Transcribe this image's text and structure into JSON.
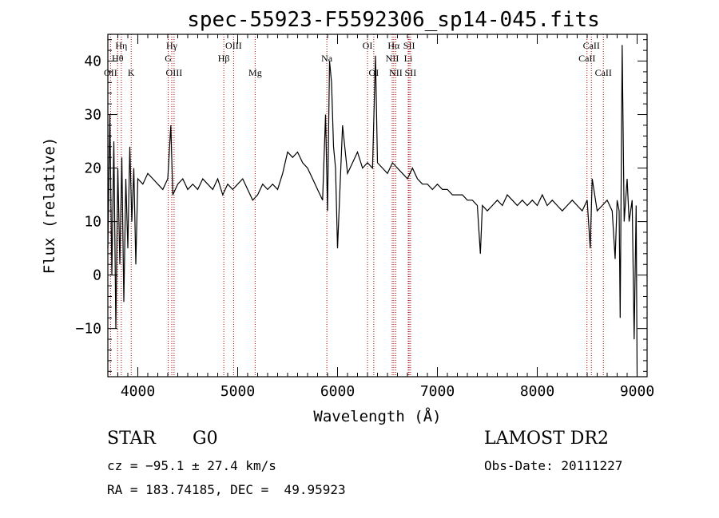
{
  "chart_data": {
    "type": "line",
    "title": "spec-55923-F5592306_sp14-045.fits",
    "xlabel": "Wavelength (Å)",
    "ylabel": "Flux (relative)",
    "xlim": [
      3700,
      9100
    ],
    "ylim": [
      -19,
      45
    ],
    "x_ticks": [
      4000,
      5000,
      6000,
      7000,
      8000,
      9000
    ],
    "y_ticks": [
      -10,
      0,
      10,
      20,
      30,
      40
    ],
    "grid": false,
    "series": [
      {
        "color": "#000000",
        "x": [
          3700,
          3720,
          3740,
          3760,
          3780,
          3800,
          3820,
          3840,
          3860,
          3880,
          3900,
          3920,
          3940,
          3960,
          3980,
          4000,
          4050,
          4100,
          4150,
          4200,
          4250,
          4300,
          4330,
          4350,
          4400,
          4450,
          4500,
          4550,
          4600,
          4650,
          4700,
          4750,
          4800,
          4850,
          4900,
          4950,
          5000,
          5050,
          5100,
          5150,
          5200,
          5250,
          5300,
          5350,
          5400,
          5450,
          5500,
          5550,
          5600,
          5650,
          5700,
          5750,
          5800,
          5850,
          5880,
          5900,
          5920,
          5940,
          5960,
          5980,
          6000,
          6050,
          6100,
          6150,
          6200,
          6250,
          6300,
          6350,
          6380,
          6400,
          6450,
          6500,
          6550,
          6600,
          6650,
          6700,
          6750,
          6800,
          6850,
          6900,
          6950,
          7000,
          7050,
          7100,
          7150,
          7200,
          7250,
          7300,
          7350,
          7400,
          7430,
          7450,
          7500,
          7550,
          7600,
          7650,
          7700,
          7750,
          7800,
          7850,
          7900,
          7950,
          8000,
          8050,
          8100,
          8150,
          8200,
          8250,
          8300,
          8350,
          8400,
          8450,
          8500,
          8530,
          8550,
          8600,
          8650,
          8700,
          8750,
          8780,
          8800,
          8820,
          8830,
          8850,
          8870,
          8900,
          8920,
          8950,
          8970,
          8990,
          9000
        ],
        "y": [
          5,
          30,
          0,
          25,
          -10,
          20,
          2,
          22,
          -5,
          18,
          5,
          24,
          10,
          20,
          2,
          18,
          17,
          19,
          18,
          17,
          16,
          18,
          28,
          15,
          17,
          18,
          16,
          17,
          16,
          18,
          17,
          16,
          18,
          15,
          17,
          16,
          17,
          18,
          16,
          14,
          15,
          17,
          16,
          17,
          16,
          19,
          23,
          22,
          23,
          21,
          20,
          18,
          16,
          14,
          30,
          12,
          40,
          36,
          24,
          20,
          5,
          28,
          19,
          21,
          23,
          20,
          21,
          20,
          41,
          21,
          20,
          19,
          21,
          20,
          19,
          18,
          20,
          18,
          17,
          17,
          16,
          17,
          16,
          16,
          15,
          15,
          15,
          14,
          14,
          13,
          4,
          13,
          12,
          13,
          14,
          13,
          15,
          14,
          13,
          14,
          13,
          14,
          13,
          15,
          13,
          14,
          13,
          12,
          13,
          14,
          13,
          12,
          14,
          5,
          18,
          12,
          13,
          14,
          12,
          3,
          14,
          12,
          -8,
          43,
          10,
          18,
          10,
          14,
          -12,
          13,
          -19
        ]
      }
    ],
    "spectral_lines": [
      {
        "label": "Hη",
        "wavelength": 3835,
        "row": 0
      },
      {
        "label": "Hθ",
        "wavelength": 3798,
        "row": 1
      },
      {
        "label": "OII",
        "wavelength": 3727,
        "row": 2
      },
      {
        "label": "K",
        "wavelength": 3934,
        "row": 2
      },
      {
        "label": "Hγ",
        "wavelength": 4340,
        "row": 0
      },
      {
        "label": "G",
        "wavelength": 4305,
        "row": 1
      },
      {
        "label": "OIII",
        "wavelength": 4363,
        "row": 2
      },
      {
        "label": "OIII",
        "wavelength": 4959,
        "row": 0
      },
      {
        "label": "Hβ",
        "wavelength": 4861,
        "row": 1
      },
      {
        "label": "Mg",
        "wavelength": 5175,
        "row": 2
      },
      {
        "label": "Na",
        "wavelength": 5893,
        "row": 1
      },
      {
        "label": "OI",
        "wavelength": 6300,
        "row": 0
      },
      {
        "label": "OI",
        "wavelength": 6363,
        "row": 2
      },
      {
        "label": "Hα",
        "wavelength": 6563,
        "row": 0
      },
      {
        "label": "SII",
        "wavelength": 6717,
        "row": 0
      },
      {
        "label": "NII",
        "wavelength": 6548,
        "row": 1
      },
      {
        "label": "Li",
        "wavelength": 6708,
        "row": 1
      },
      {
        "label": "NII",
        "wavelength": 6583,
        "row": 2
      },
      {
        "label": "SII",
        "wavelength": 6731,
        "row": 2
      },
      {
        "label": "CaII",
        "wavelength": 8542,
        "row": 0
      },
      {
        "label": "CaII",
        "wavelength": 8498,
        "row": 1
      },
      {
        "label": "CaII",
        "wavelength": 8662,
        "row": 2
      }
    ],
    "line_marker_color": "#a80000"
  },
  "info": {
    "class_label": "STAR",
    "subclass_label": "G0",
    "cz_text": "cz = −95.1 ± 27.4 km/s",
    "coords_text": "RA = 183.74185, DEC =  49.95923",
    "survey_label": "LAMOST DR2",
    "obs_date_text": "Obs-Date: 20111227"
  }
}
